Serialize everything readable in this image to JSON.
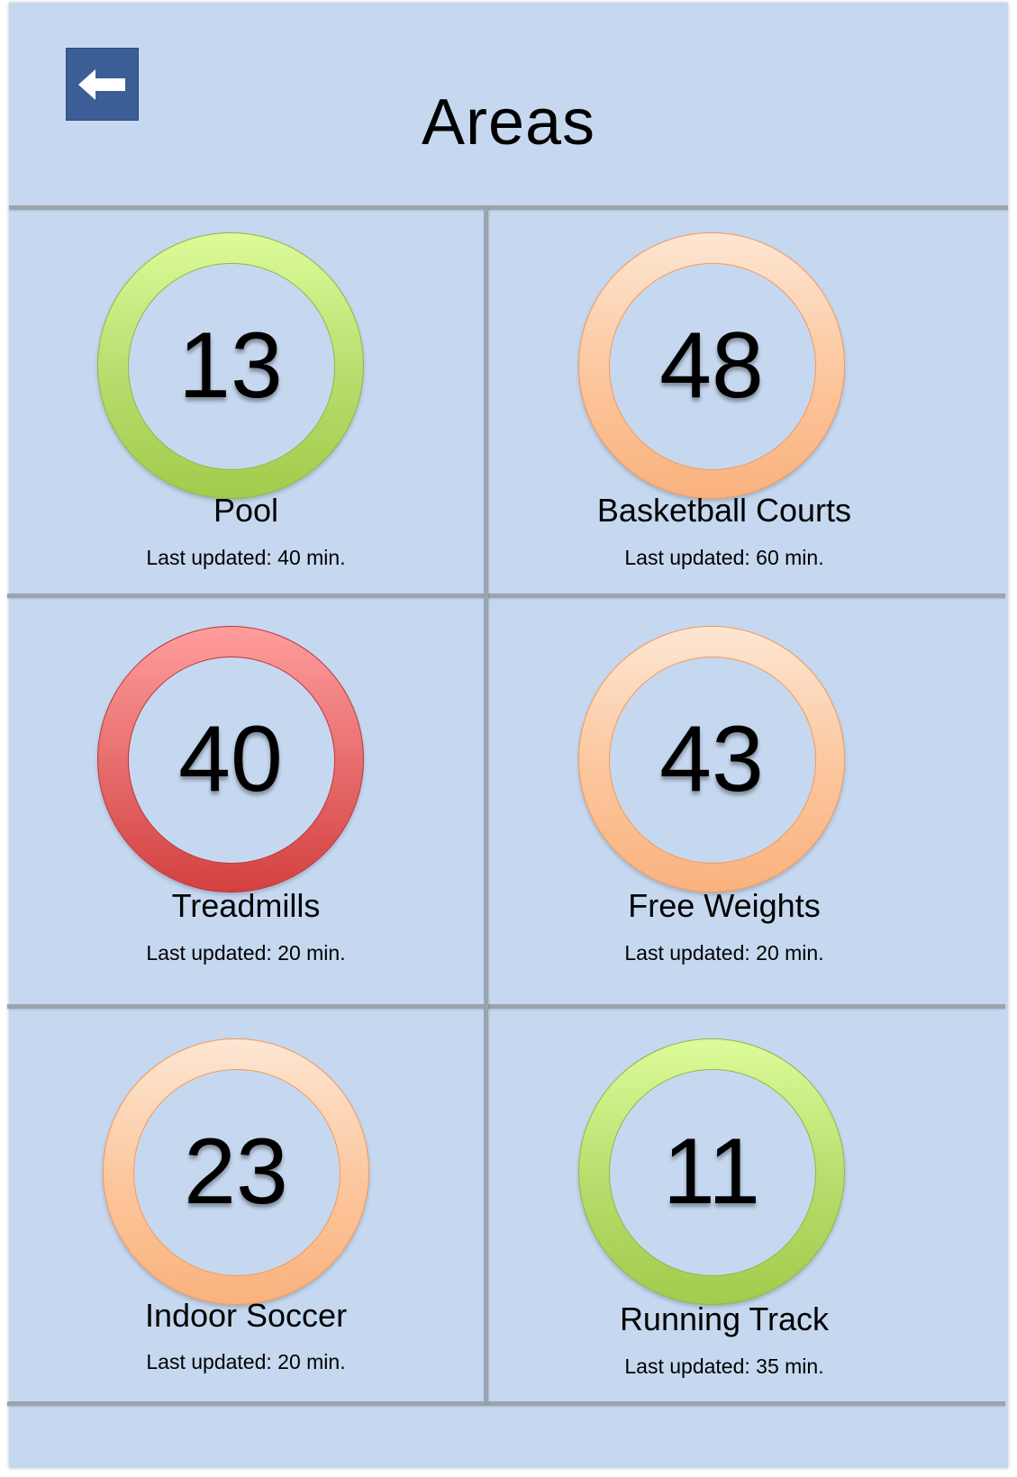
{
  "header": {
    "title": "Areas",
    "back_icon": "arrow-left-icon"
  },
  "status_colors": {
    "green": "#b7dc6c",
    "orange": "#fcc69c",
    "red": "#e66a6a"
  },
  "areas": [
    {
      "name": "Pool",
      "count": "13",
      "status": "green",
      "updated": "Last updated: 40 min."
    },
    {
      "name": "Basketball Courts",
      "count": "48",
      "status": "orange",
      "updated": "Last updated: 60 min."
    },
    {
      "name": "Treadmills",
      "count": "40",
      "status": "red",
      "updated": "Last updated: 20 min."
    },
    {
      "name": "Free Weights",
      "count": "43",
      "status": "orange",
      "updated": "Last updated: 20 min."
    },
    {
      "name": "Indoor Soccer",
      "count": "23",
      "status": "orange",
      "updated": "Last updated: 20 min."
    },
    {
      "name": "Running Track",
      "count": "11",
      "status": "green",
      "updated": "Last updated: 35 min."
    }
  ]
}
